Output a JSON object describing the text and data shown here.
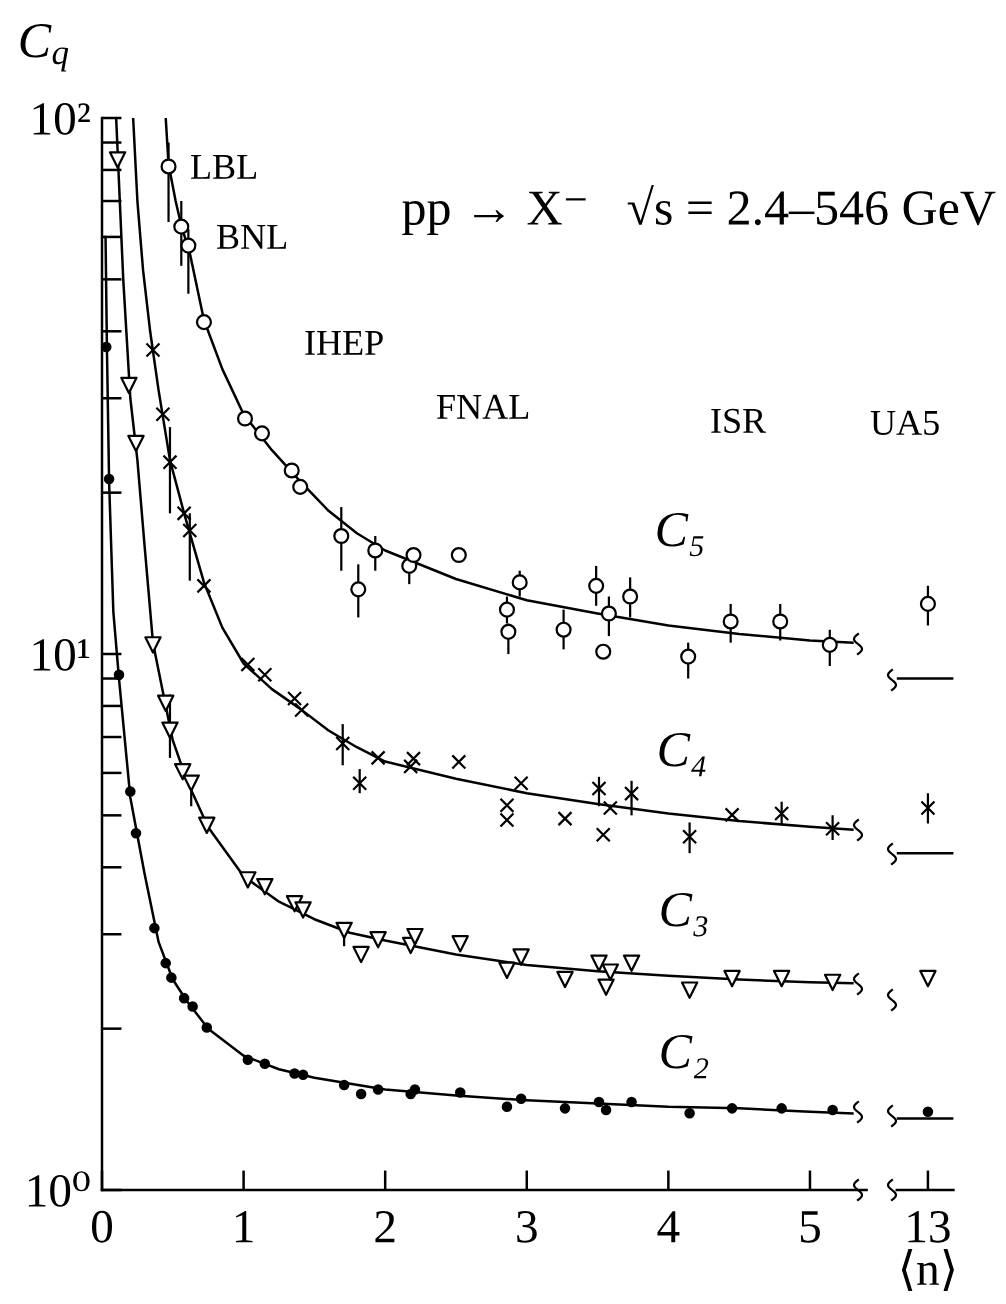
{
  "chart_data": [
    {
      "type": "scatter",
      "title": "pp → X⁻   √s = 2.4–546 GeV",
      "ylabel": "C$_{q}$",
      "log": "y",
      "xlim": [
        0,
        5.4
      ],
      "xticks": [
        0,
        1,
        2,
        3,
        4,
        5
      ],
      "ylim": [
        1,
        100
      ],
      "yticks": [
        {
          "value": 1,
          "label": "10⁰"
        },
        {
          "value": 2,
          "label": null
        },
        {
          "value": 3,
          "label": null
        },
        {
          "value": 4,
          "label": null
        },
        {
          "value": 5,
          "label": null
        },
        {
          "value": 6,
          "label": null
        },
        {
          "value": 7,
          "label": null
        },
        {
          "value": 8,
          "label": null
        },
        {
          "value": 9,
          "label": null
        },
        {
          "value": 10,
          "label": "10¹"
        },
        {
          "value": 20,
          "label": null
        },
        {
          "value": 30,
          "label": null
        },
        {
          "value": 40,
          "label": null
        },
        {
          "value": 50,
          "label": null
        },
        {
          "value": 60,
          "label": null
        },
        {
          "value": 70,
          "label": null
        },
        {
          "value": 80,
          "label": null
        },
        {
          "value": 90,
          "label": null
        },
        {
          "value": 100,
          "label": "10²"
        }
      ],
      "annotations": [
        "LBL",
        "BNL",
        "IHEP",
        "FNAL",
        "ISR"
      ],
      "series": [
        {
          "type": "line",
          "color": "#000000",
          "x": [
            0.025,
            0.035,
            0.05,
            0.08,
            0.12,
            0.2,
            0.3,
            0.4,
            0.5,
            0.6,
            0.75,
            1.0,
            1.25,
            1.5,
            2.0,
            2.5,
            3.0,
            3.5,
            4.0,
            4.5,
            5.0,
            5.3
          ],
          "values": [
            60,
            37,
            21,
            12,
            9.0,
            5.4,
            3.9,
            2.9,
            2.47,
            2.25,
            2.0,
            1.78,
            1.68,
            1.62,
            1.54,
            1.5,
            1.47,
            1.45,
            1.43,
            1.42,
            1.4,
            1.39
          ]
        },
        {
          "type": "line",
          "color": "#000000",
          "x": [
            0.1,
            0.15,
            0.2,
            0.25,
            0.3,
            0.36,
            0.45,
            0.5,
            0.6,
            0.75,
            1.0,
            1.25,
            1.5,
            1.75,
            2.0,
            2.5,
            3.0,
            3.5,
            4.0,
            4.5,
            5.0,
            5.3
          ],
          "values": [
            100,
            50,
            30,
            23,
            16,
            10.5,
            8.0,
            6.9,
            5.8,
            4.75,
            3.85,
            3.45,
            3.2,
            3.02,
            2.92,
            2.75,
            2.63,
            2.56,
            2.51,
            2.47,
            2.44,
            2.43
          ]
        },
        {
          "type": "line",
          "color": "#000000",
          "x": [
            0.22,
            0.25,
            0.29,
            0.34,
            0.4,
            0.48,
            0.58,
            0.72,
            0.85,
            1.0,
            1.2,
            1.4,
            1.6,
            1.8,
            2.0,
            2.5,
            3.0,
            3.5,
            4.0,
            4.5,
            5.0,
            5.3
          ],
          "values": [
            100,
            70,
            52,
            40,
            31,
            23,
            18.3,
            13.6,
            11.2,
            9.6,
            8.6,
            7.9,
            7.2,
            6.7,
            6.3,
            5.85,
            5.5,
            5.25,
            5.04,
            4.88,
            4.76,
            4.7
          ]
        },
        {
          "type": "line",
          "color": "#000000",
          "x": [
            0.45,
            0.47,
            0.52,
            0.56,
            0.62,
            0.72,
            0.85,
            1.0,
            1.2,
            1.4,
            1.6,
            1.8,
            2.0,
            2.5,
            3.0,
            3.5,
            4.0,
            4.5,
            5.0,
            5.3
          ],
          "values": [
            100,
            82,
            70,
            63,
            56,
            42,
            34,
            28,
            24,
            21,
            18.5,
            16.8,
            15.6,
            13.8,
            12.6,
            11.9,
            11.3,
            10.9,
            10.6,
            10.5
          ]
        },
        {
          "name": "C₂",
          "marker": "circle",
          "color": "#000000",
          "x": [
            0.03,
            0.05,
            0.12,
            0.2,
            0.24,
            0.37,
            0.45,
            0.49,
            0.58,
            0.64,
            0.74,
            1.03,
            1.15,
            1.36,
            1.42,
            1.71,
            1.83,
            1.95,
            2.18,
            2.21,
            2.53,
            2.86,
            2.96,
            3.27,
            3.51,
            3.56,
            3.74,
            4.15,
            4.45,
            4.8,
            5.16
          ],
          "values": [
            37.4,
            21.2,
            9.15,
            5.54,
            4.63,
            3.08,
            2.65,
            2.49,
            2.28,
            2.2,
            2.01,
            1.75,
            1.72,
            1.65,
            1.64,
            1.57,
            1.51,
            1.54,
            1.51,
            1.54,
            1.52,
            1.43,
            1.48,
            1.42,
            1.46,
            1.41,
            1.46,
            1.39,
            1.42,
            1.42,
            1.41
          ]
        },
        {
          "name": "C₃",
          "marker": "triangle",
          "color": "#000000",
          "x": [
            0.11,
            0.19,
            0.24,
            0.36,
            0.45,
            0.48,
            0.57,
            0.63,
            0.74,
            1.03,
            1.15,
            1.36,
            1.42,
            1.71,
            1.83,
            1.95,
            2.18,
            2.21,
            2.53,
            2.86,
            2.96,
            3.27,
            3.51,
            3.56,
            3.59,
            3.74,
            4.15,
            4.45,
            4.8,
            5.16
          ],
          "values": [
            83.5,
            31.7,
            24.7,
            10.4,
            8.09,
            7.21,
            6.03,
            5.74,
            4.79,
            3.79,
            3.68,
            3.42,
            3.33,
            3.05,
            2.75,
            2.93,
            2.86,
            2.97,
            2.88,
            2.57,
            2.72,
            2.47,
            2.65,
            2.39,
            2.55,
            2.65,
            2.36,
            2.48,
            2.48,
            2.44
          ],
          "errors": [
            null,
            null,
            null,
            null,
            null,
            [
              6.4,
              8.4
            ],
            null,
            [
              5.2,
              5.9
            ],
            null,
            null,
            null,
            null,
            null,
            [
              2.85,
              3.15
            ],
            null,
            null,
            null,
            null,
            null,
            null,
            null,
            null,
            null,
            null,
            null,
            null,
            null,
            null,
            null,
            null
          ]
        },
        {
          "name": "C₄",
          "marker": "cross",
          "color": "#000000",
          "x": [
            0.36,
            0.43,
            0.48,
            0.58,
            0.62,
            0.72,
            1.03,
            1.15,
            1.36,
            1.41,
            1.7,
            1.82,
            1.95,
            2.18,
            2.2,
            2.52,
            2.86,
            2.86,
            2.96,
            3.27,
            3.51,
            3.54,
            3.59,
            3.74,
            4.15,
            4.45,
            4.8,
            5.16
          ],
          "values": [
            36.9,
            28.0,
            22.8,
            18.3,
            17.0,
            13.4,
            9.56,
            9.15,
            8.26,
            7.86,
            6.81,
            5.74,
            6.4,
            6.17,
            6.38,
            6.29,
            5.22,
            4.9,
            5.74,
            4.93,
            5.61,
            4.6,
            5.16,
            5.49,
            4.56,
            5.01,
            5.04,
            4.72
          ],
          "errors": [
            null,
            null,
            [
              18.3,
              26.5
            ],
            null,
            [
              13.7,
              18.3
            ],
            null,
            null,
            null,
            null,
            null,
            [
              6.2,
              7.4
            ],
            [
              5.5,
              6.1
            ],
            null,
            null,
            null,
            null,
            null,
            null,
            null,
            null,
            [
              5.2,
              5.9
            ],
            null,
            null,
            [
              5.0,
              5.8
            ],
            [
              4.25,
              4.85
            ],
            null,
            [
              4.8,
              5.3
            ],
            [
              4.5,
              5.0
            ]
          ]
        },
        {
          "name": "C₅",
          "marker": "circle",
          "color": "#000000",
          "x": [
            0.47,
            0.56,
            0.61,
            0.72,
            1.01,
            1.13,
            1.34,
            1.4,
            1.69,
            1.81,
            1.93,
            2.17,
            2.2,
            2.52,
            2.86,
            2.87,
            2.95,
            3.26,
            3.49,
            3.54,
            3.58,
            3.73,
            4.14,
            4.44,
            4.79,
            5.14
          ],
          "values": [
            81.2,
            62.7,
            57.8,
            41.6,
            27.5,
            25.8,
            22.0,
            20.5,
            16.6,
            13.2,
            15.6,
            14.6,
            15.3,
            15.3,
            12.1,
            11.0,
            13.6,
            11.1,
            13.4,
            10.1,
            11.9,
            12.8,
            9.89,
            11.5,
            11.5,
            10.4
          ],
          "errors": [
            [
              64,
              90
            ],
            [
              53,
              70
            ],
            [
              47,
              62
            ],
            null,
            null,
            null,
            null,
            null,
            [
              14.3,
              18.8
            ],
            [
              11.7,
              14.7
            ],
            [
              14.3,
              16.6
            ],
            [
              13.5,
              15.4
            ],
            null,
            null,
            [
              11.4,
              12.8
            ],
            [
              10.0,
              11.4
            ],
            [
              12.8,
              14.3
            ],
            [
              10.2,
              12.1
            ],
            [
              12.3,
              14.6
            ],
            null,
            [
              10.8,
              12.8
            ],
            [
              11.7,
              13.9
            ],
            [
              9.0,
              10.5
            ],
            [
              10.5,
              12.4
            ],
            [
              10.6,
              12.4
            ],
            [
              9.5,
              11.1
            ]
          ]
        }
      ]
    },
    {
      "type": "scatter",
      "xlabel": "⟨n⟩",
      "log": "y",
      "categories": [
        "13"
      ],
      "ylim": [
        1,
        100
      ],
      "tick_labels": "x",
      "annotations": [
        "UA5"
      ],
      "ref_lines": [
        {
          "axis": "y",
          "value": 9.0,
          "color": "#000000"
        },
        {
          "axis": "y",
          "value": 4.25,
          "color": "#000000"
        },
        {
          "axis": "y",
          "value": 1.36,
          "color": "#000000"
        }
      ],
      "series": [
        {
          "marker": "circle",
          "color": "#000000",
          "values": [
            1.4
          ]
        },
        {
          "marker": "triangle",
          "color": "#000000",
          "values": [
            2.48
          ]
        },
        {
          "marker": "cross",
          "color": "#000000",
          "values": [
            5.16
          ],
          "errors": [
            [
              4.83,
              5.5
            ]
          ]
        },
        {
          "marker": "circle",
          "color": "#000000",
          "values": [
            12.4
          ],
          "errors": [
            [
              11.3,
              13.4
            ]
          ]
        }
      ]
    }
  ]
}
